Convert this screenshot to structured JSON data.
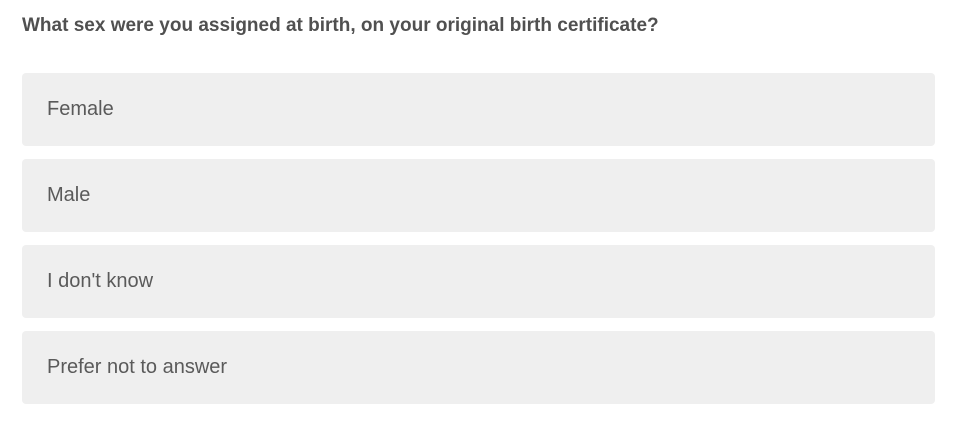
{
  "question": "What sex were you assigned at birth, on your original birth certificate?",
  "options": [
    {
      "label": "Female"
    },
    {
      "label": "Male"
    },
    {
      "label": "I don't know"
    },
    {
      "label": "Prefer not to answer"
    }
  ]
}
